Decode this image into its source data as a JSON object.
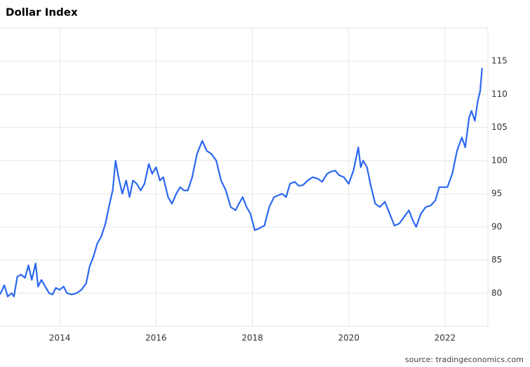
{
  "chart_data": {
    "type": "line",
    "title": "Dollar Index",
    "source": "source: tradingeconomics.com",
    "color": "#2b67f0",
    "grid": true,
    "xlim": [
      2012.76,
      2022.89
    ],
    "xticks": [
      2014,
      2016,
      2018,
      2020,
      2022
    ],
    "ylim": [
      75,
      120
    ],
    "yticks": [
      80,
      85,
      90,
      95,
      100,
      105,
      110,
      115
    ],
    "x": [
      2012.76,
      2012.85,
      2012.92,
      2013.0,
      2013.05,
      2013.12,
      2013.2,
      2013.28,
      2013.35,
      2013.42,
      2013.5,
      2013.55,
      2013.62,
      2013.7,
      2013.78,
      2013.85,
      2013.92,
      2014.0,
      2014.08,
      2014.15,
      2014.25,
      2014.35,
      2014.45,
      2014.55,
      2014.62,
      2014.7,
      2014.78,
      2014.86,
      2014.95,
      2015.02,
      2015.1,
      2015.16,
      2015.22,
      2015.3,
      2015.38,
      2015.45,
      2015.52,
      2015.6,
      2015.68,
      2015.76,
      2015.85,
      2015.92,
      2016.0,
      2016.08,
      2016.15,
      2016.25,
      2016.33,
      2016.42,
      2016.5,
      2016.58,
      2016.66,
      2016.75,
      2016.85,
      2016.96,
      2017.05,
      2017.15,
      2017.25,
      2017.35,
      2017.45,
      2017.55,
      2017.65,
      2017.72,
      2017.8,
      2017.88,
      2017.96,
      2018.05,
      2018.15,
      2018.25,
      2018.35,
      2018.45,
      2018.55,
      2018.62,
      2018.7,
      2018.78,
      2018.88,
      2018.96,
      2019.05,
      2019.15,
      2019.25,
      2019.35,
      2019.45,
      2019.55,
      2019.62,
      2019.72,
      2019.8,
      2019.9,
      2020.0,
      2020.1,
      2020.2,
      2020.25,
      2020.3,
      2020.38,
      2020.45,
      2020.55,
      2020.65,
      2020.75,
      2020.85,
      2020.95,
      2021.05,
      2021.15,
      2021.25,
      2021.33,
      2021.4,
      2021.5,
      2021.6,
      2021.7,
      2021.8,
      2021.88,
      2021.96,
      2022.05,
      2022.15,
      2022.25,
      2022.35,
      2022.42,
      2022.5,
      2022.55,
      2022.62,
      2022.68,
      2022.73,
      2022.77
    ],
    "values": [
      79.8,
      81.2,
      79.5,
      80.0,
      79.5,
      82.5,
      82.8,
      82.3,
      84.2,
      82.0,
      84.5,
      81.0,
      82.0,
      81.0,
      80.0,
      79.8,
      80.8,
      80.5,
      81.0,
      80.0,
      79.8,
      80.0,
      80.5,
      81.5,
      84.0,
      85.5,
      87.5,
      88.5,
      90.5,
      93.0,
      95.5,
      100.0,
      97.5,
      95.0,
      97.0,
      94.5,
      97.0,
      96.5,
      95.5,
      96.5,
      99.5,
      98.0,
      99.0,
      97.0,
      97.5,
      94.5,
      93.5,
      95.0,
      96.0,
      95.5,
      95.5,
      97.5,
      101.0,
      103.0,
      101.5,
      101.0,
      100.0,
      97.0,
      95.5,
      93.0,
      92.5,
      93.5,
      94.5,
      93.0,
      92.0,
      89.5,
      89.8,
      90.2,
      93.0,
      94.5,
      94.8,
      95.0,
      94.5,
      96.5,
      96.8,
      96.2,
      96.3,
      97.0,
      97.5,
      97.3,
      96.8,
      98.0,
      98.3,
      98.5,
      97.8,
      97.5,
      96.5,
      98.5,
      102.0,
      99.0,
      100.0,
      99.0,
      96.5,
      93.5,
      93.0,
      93.8,
      92.0,
      90.2,
      90.5,
      91.5,
      92.5,
      91.0,
      90.0,
      92.0,
      93.0,
      93.2,
      94.0,
      96.0,
      96.0,
      96.0,
      98.0,
      101.5,
      103.5,
      102.0,
      106.5,
      107.5,
      106.0,
      109.0,
      110.5,
      114.0
    ]
  }
}
